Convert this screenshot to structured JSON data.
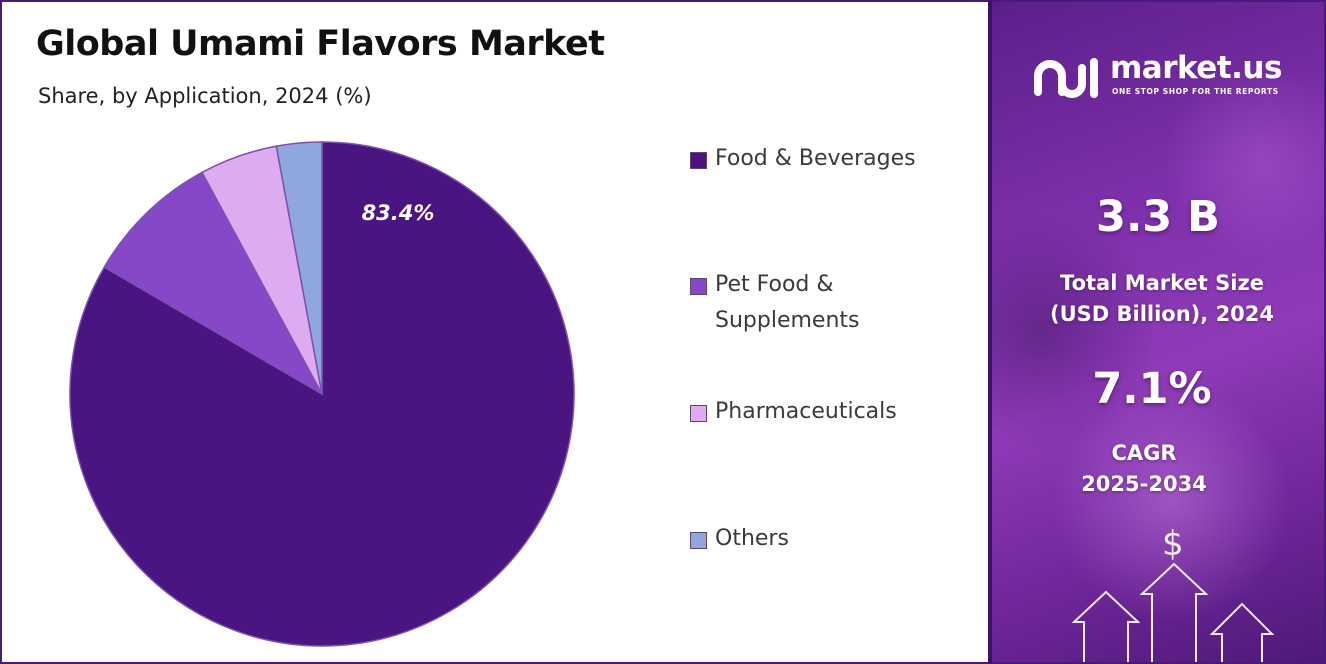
{
  "title": "Global Umami Flavors Market",
  "subtitle": "Share, by Application, 2024 (%)",
  "chart_data": {
    "type": "pie",
    "title": "Global Umami Flavors Market",
    "subtitle": "Share, by Application, 2024 (%)",
    "categories": [
      "Food & Beverages",
      "Pet Food & Supplements",
      "Pharmaceuticals",
      "Others"
    ],
    "values": [
      83.4,
      8.7,
      5.0,
      2.9
    ],
    "colors": [
      "#4a1580",
      "#8647c8",
      "#deaaf0",
      "#8fa7dd"
    ],
    "data_labels": [
      {
        "category": "Food & Beverages",
        "text": "83.4%"
      }
    ],
    "legend_position": "right"
  },
  "legend": [
    {
      "label": "Food & Beverages",
      "color": "#4a1580"
    },
    {
      "label": "Pet Food & Supplements",
      "color": "#8647c8"
    },
    {
      "label": "Pharmaceuticals",
      "color": "#deaaf0"
    },
    {
      "label": "Others",
      "color": "#8fa7dd"
    }
  ],
  "brand": {
    "name": "market.us",
    "tagline": "ONE STOP SHOP FOR THE REPORTS"
  },
  "stats": {
    "market_size_value": "3.3 B",
    "market_size_label_line1": "Total Market Size",
    "market_size_label_line2": "(USD Billion), 2024",
    "cagr_value": "7.1%",
    "cagr_label_line1": "CAGR",
    "cagr_label_line2": "2025-2034"
  },
  "decor": {
    "currency_symbol": "$"
  }
}
